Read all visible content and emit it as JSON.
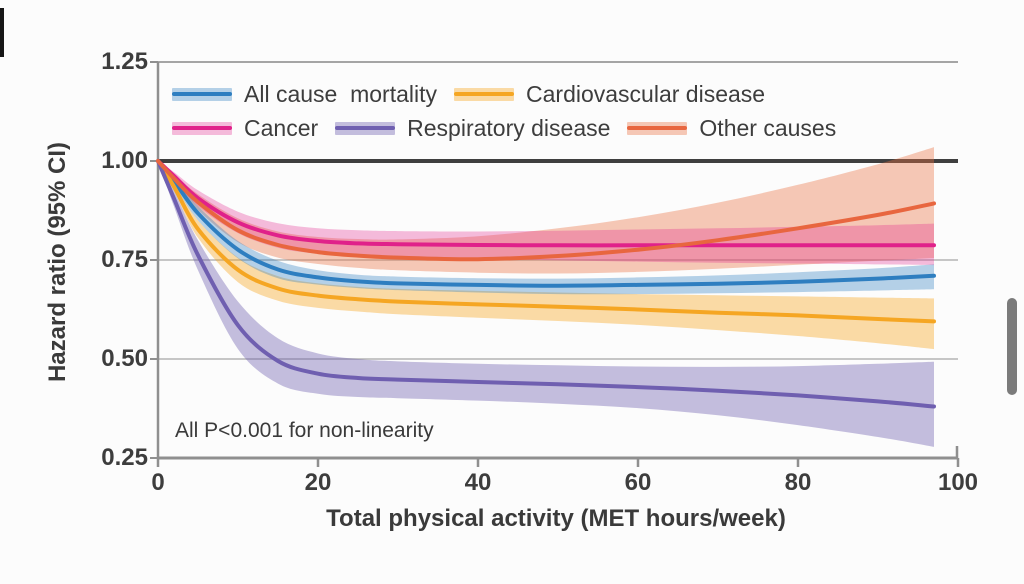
{
  "ui": {
    "background": "#fcfcfc",
    "caret_color": "#161616",
    "scrollbar_color": "#7b7b7b"
  },
  "chart_data": {
    "type": "line",
    "title": "",
    "xlabel": "Total physical activity (MET hours/week)",
    "ylabel": "Hazard ratio (95% CI)",
    "annotation": "All P<0.001 for non-linearity",
    "xlim": [
      0,
      100
    ],
    "ylim": [
      0.25,
      1.25
    ],
    "xticks": [
      0,
      20,
      40,
      60,
      80,
      100
    ],
    "yticks": [
      0.25,
      0.5,
      0.75,
      1.0,
      1.25
    ],
    "ytick_labels": [
      "0.25",
      "0.50",
      "0.75",
      "1.00",
      "1.25"
    ],
    "grid": "horizontal gridlines at 0.50 and 0.75",
    "reference_line_y": 1.0,
    "legend_position": "inside top-left, two rows",
    "legend_rows": [
      [
        0,
        1
      ],
      [
        2,
        3,
        4
      ]
    ],
    "x": [
      0,
      2,
      5,
      10,
      15,
      20,
      25,
      30,
      40,
      50,
      60,
      70,
      80,
      90,
      97
    ],
    "series": [
      {
        "name": "All cause  mortality",
        "color": "#2e7ec0",
        "band_color": "rgba(47,127,193,0.35)",
        "values": [
          1.0,
          0.95,
          0.868,
          0.776,
          0.726,
          0.706,
          0.696,
          0.691,
          0.687,
          0.685,
          0.687,
          0.69,
          0.695,
          0.703,
          0.71
        ],
        "ci_upper": [
          1.0,
          0.958,
          0.886,
          0.798,
          0.748,
          0.724,
          0.713,
          0.708,
          0.704,
          0.703,
          0.706,
          0.711,
          0.719,
          0.729,
          0.739
        ],
        "ci_lower": [
          1.0,
          0.942,
          0.85,
          0.754,
          0.704,
          0.688,
          0.679,
          0.674,
          0.668,
          0.664,
          0.664,
          0.666,
          0.669,
          0.673,
          0.676
        ]
      },
      {
        "name": "Cardiovascular disease",
        "color": "#f5a623",
        "band_color": "rgba(247,168,35,0.40)",
        "values": [
          1.0,
          0.935,
          0.828,
          0.725,
          0.678,
          0.66,
          0.651,
          0.645,
          0.638,
          0.632,
          0.625,
          0.617,
          0.61,
          0.601,
          0.595
        ],
        "ci_upper": [
          1.0,
          0.945,
          0.85,
          0.756,
          0.709,
          0.691,
          0.682,
          0.677,
          0.672,
          0.668,
          0.664,
          0.661,
          0.658,
          0.655,
          0.653
        ],
        "ci_lower": [
          1.0,
          0.925,
          0.806,
          0.694,
          0.647,
          0.629,
          0.62,
          0.613,
          0.604,
          0.596,
          0.586,
          0.573,
          0.558,
          0.54,
          0.525
        ]
      },
      {
        "name": "Cancer",
        "color": "#e0218a",
        "band_color": "rgba(224,33,138,0.30)",
        "values": [
          1.0,
          0.962,
          0.906,
          0.845,
          0.812,
          0.798,
          0.792,
          0.79,
          0.788,
          0.787,
          0.787,
          0.787,
          0.787,
          0.787,
          0.787
        ],
        "ci_upper": [
          1.0,
          0.972,
          0.926,
          0.872,
          0.843,
          0.83,
          0.825,
          0.823,
          0.822,
          0.824,
          0.827,
          0.83,
          0.834,
          0.838,
          0.842
        ],
        "ci_lower": [
          1.0,
          0.952,
          0.886,
          0.818,
          0.781,
          0.766,
          0.76,
          0.757,
          0.753,
          0.749,
          0.746,
          0.743,
          0.741,
          0.739,
          0.737
        ]
      },
      {
        "name": "Respiratory disease",
        "color": "#6f5fb0",
        "band_color": "rgba(111,95,176,0.40)",
        "values": [
          1.0,
          0.905,
          0.762,
          0.585,
          0.495,
          0.463,
          0.452,
          0.448,
          0.442,
          0.436,
          0.429,
          0.42,
          0.408,
          0.393,
          0.38
        ],
        "ci_upper": [
          1.0,
          0.925,
          0.8,
          0.645,
          0.552,
          0.514,
          0.5,
          0.494,
          0.488,
          0.484,
          0.481,
          0.48,
          0.482,
          0.488,
          0.493
        ],
        "ci_lower": [
          1.0,
          0.885,
          0.724,
          0.525,
          0.438,
          0.412,
          0.404,
          0.401,
          0.395,
          0.387,
          0.376,
          0.358,
          0.333,
          0.303,
          0.278
        ]
      },
      {
        "name": "Other causes",
        "color": "#e8663f",
        "band_color": "rgba(233,112,66,0.38)",
        "values": [
          1.0,
          0.956,
          0.896,
          0.825,
          0.788,
          0.77,
          0.761,
          0.756,
          0.752,
          0.76,
          0.776,
          0.8,
          0.83,
          0.864,
          0.893
        ],
        "ci_upper": [
          1.0,
          0.966,
          0.916,
          0.855,
          0.822,
          0.808,
          0.803,
          0.802,
          0.81,
          0.83,
          0.858,
          0.895,
          0.94,
          0.992,
          1.035
        ],
        "ci_lower": [
          1.0,
          0.946,
          0.876,
          0.795,
          0.756,
          0.74,
          0.73,
          0.724,
          0.718,
          0.716,
          0.72,
          0.728,
          0.738,
          0.748,
          0.755
        ]
      }
    ]
  }
}
